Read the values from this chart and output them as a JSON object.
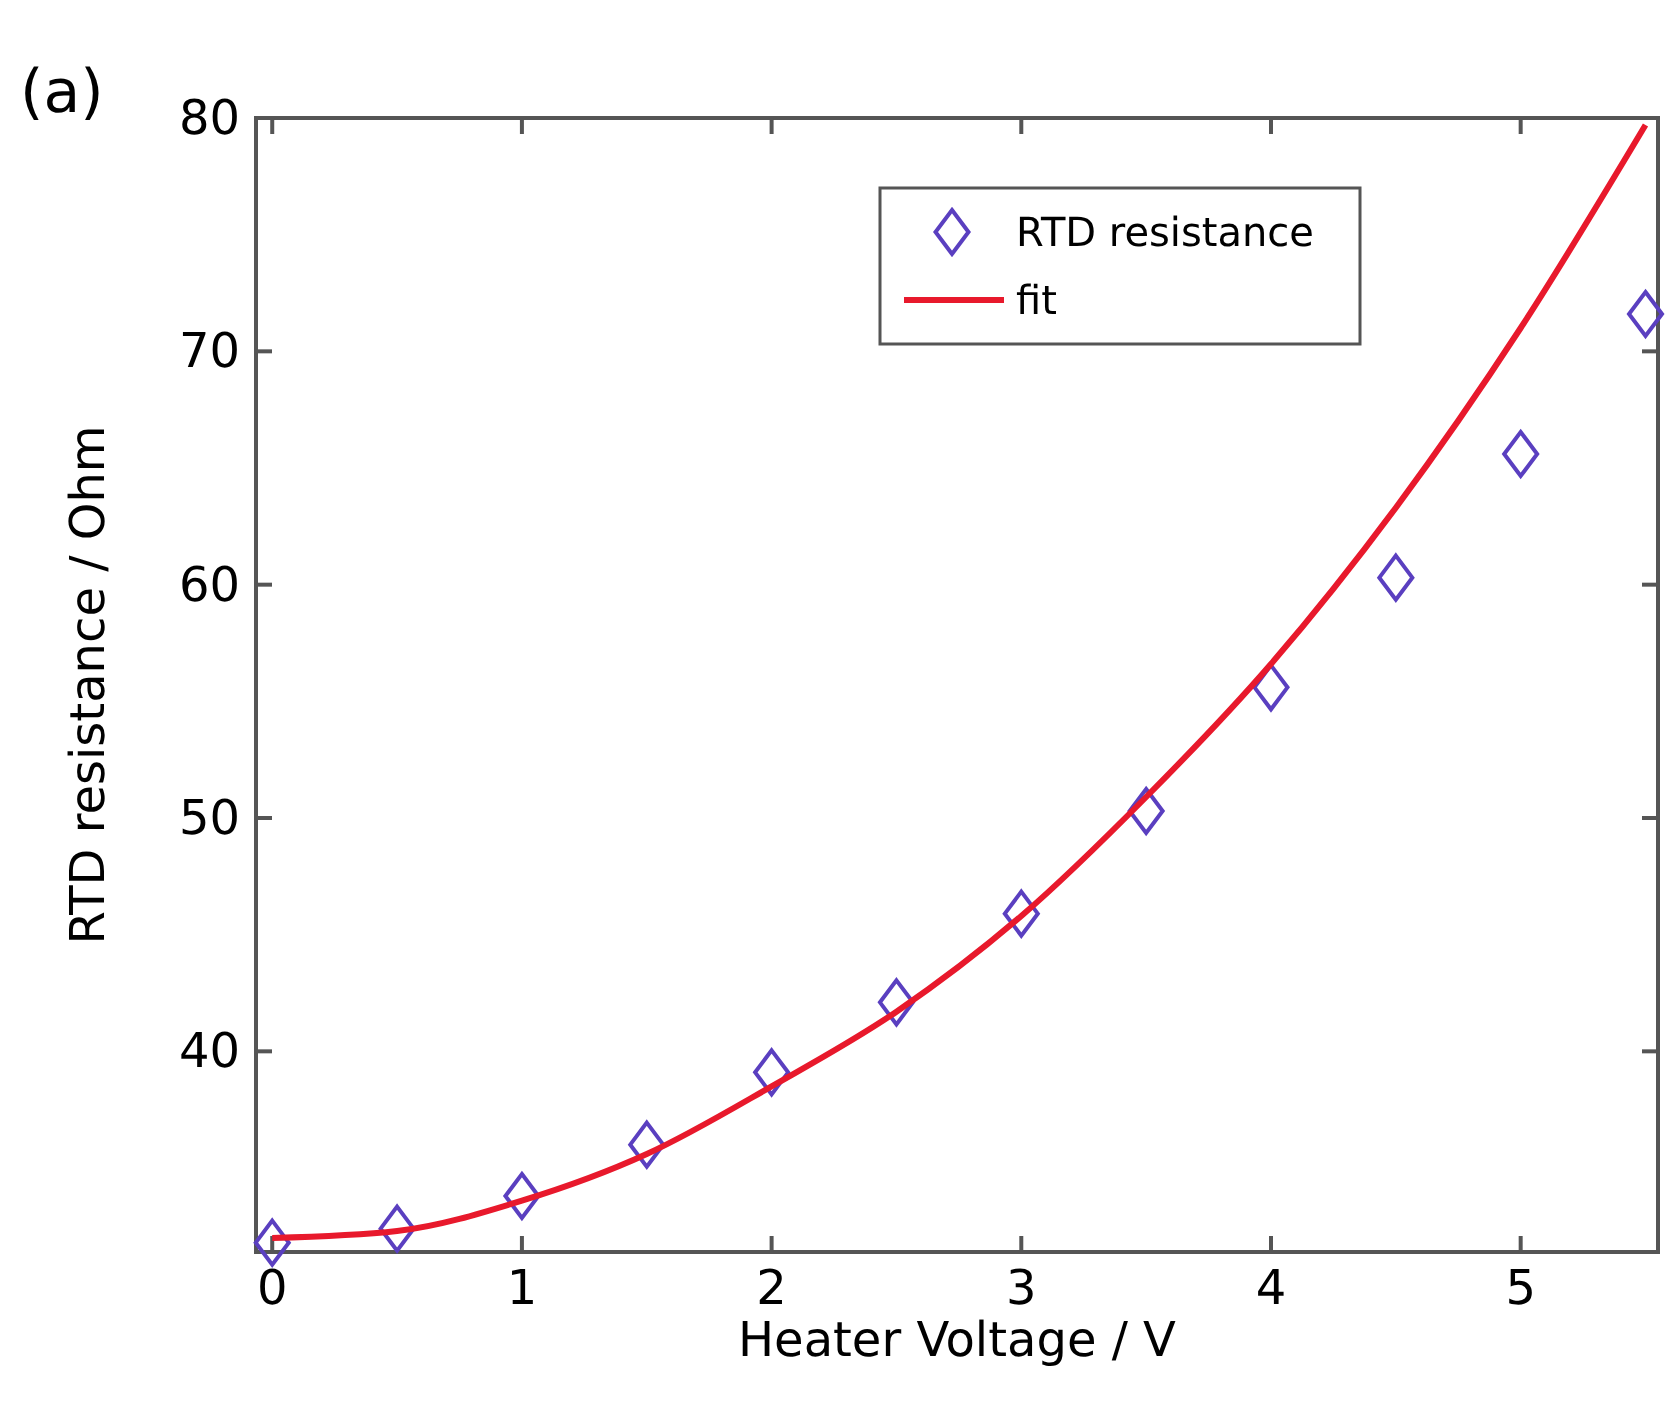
{
  "chart_data": {
    "type": "scatter",
    "title": "(a)",
    "xlabel": "Heater Voltage / V",
    "ylabel": "RTD resistance / Ohm",
    "xlim": [
      -0.065,
      5.55
    ],
    "xticks": [
      0,
      1,
      2,
      3,
      4,
      5
    ],
    "ylim": [
      31.4,
      80
    ],
    "yticks": [
      40,
      50,
      60,
      70,
      80
    ],
    "legend": "top right",
    "grid": false,
    "series": [
      {
        "name": "RTD resistance",
        "marker": "diamond",
        "color": "#5a3fc0",
        "x": [
          0,
          0.5,
          1,
          1.5,
          2,
          2.5,
          3,
          3.5,
          4,
          4.5,
          5,
          5.5
        ],
        "values": [
          31.8,
          32.4,
          33.8,
          36.0,
          39.1,
          42.1,
          45.9,
          50.3,
          55.6,
          60.3,
          65.6,
          71.6
        ]
      },
      {
        "name": "fit",
        "type": "line",
        "marker": "none",
        "line_style": "solid",
        "color": "#e8192c",
        "x": [
          0,
          0.5,
          1,
          1.5,
          2,
          2.5,
          3,
          3.5,
          4,
          4.5,
          5,
          5.5
        ],
        "values": [
          32.0,
          32.3,
          33.6,
          35.6,
          38.5,
          41.7,
          45.8,
          50.9,
          56.6,
          63.3,
          71.0,
          79.7
        ]
      }
    ]
  }
}
